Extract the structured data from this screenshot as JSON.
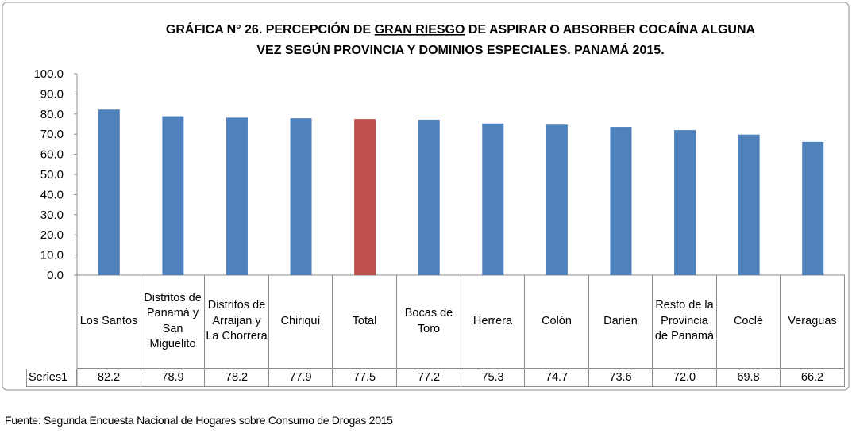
{
  "chart_data": {
    "type": "bar",
    "title": [
      "GRÁFICA N° 26.  PERCEPCIÓN DE",
      "GRAN RIESGO",
      "DE ASPIRAR O ABSORBER COCAÍNA ALGUNA",
      "VEZ SEGÚN PROVINCIA Y DOMINIOS ESPECIALES. PANAMÁ 2015."
    ],
    "categories": [
      "Los Santos",
      "Distritos de Panamá y San Miguelito",
      "Distritos de Arraijan y La Chorrera",
      "Chiriquí",
      "Total",
      "Bocas de Toro",
      "Herrera",
      "Colón",
      "Darien",
      "Resto de la Provincia de Panamá",
      "Coclé",
      "Veraguas"
    ],
    "series": [
      {
        "name": "Series1",
        "values": [
          82.2,
          78.9,
          78.2,
          77.9,
          77.5,
          77.2,
          75.3,
          74.7,
          73.6,
          72.0,
          69.8,
          66.2
        ],
        "value_labels": [
          "82.2",
          "78.9",
          "78.2",
          "77.9",
          "77.5",
          "77.2",
          "75.3",
          "74.7",
          "73.6",
          "72.0",
          "69.8",
          "66.2"
        ],
        "colors": [
          "#4f81bd",
          "#4f81bd",
          "#4f81bd",
          "#4f81bd",
          "#c0504d",
          "#4f81bd",
          "#4f81bd",
          "#4f81bd",
          "#4f81bd",
          "#4f81bd",
          "#4f81bd",
          "#4f81bd"
        ]
      }
    ],
    "ylim": [
      0,
      100
    ],
    "yticks": [
      {
        "value": 0,
        "label": "0.0"
      },
      {
        "value": 10,
        "label": "10.0"
      },
      {
        "value": 20,
        "label": "20.0"
      },
      {
        "value": 30,
        "label": "30.0"
      },
      {
        "value": 40,
        "label": "40.0"
      },
      {
        "value": 50,
        "label": "50.0"
      },
      {
        "value": 60,
        "label": "60.0"
      },
      {
        "value": 70,
        "label": "70.0"
      },
      {
        "value": 80,
        "label": "80.0"
      },
      {
        "value": 90,
        "label": "90.0"
      },
      {
        "value": 100,
        "label": "100.0"
      }
    ],
    "grid": false,
    "note": "Fuente: Segunda Encuesta Nacional de Hogares sobre Consumo de Drogas 2015"
  }
}
